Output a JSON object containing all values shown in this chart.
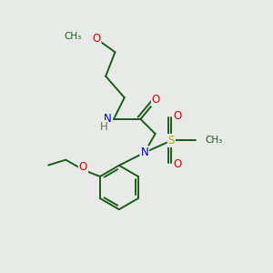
{
  "bg_color": "#e8eae8",
  "bond_color": "#1a5c1a",
  "atom_colors": {
    "O": "#dd0000",
    "N": "#0000cc",
    "S": "#aaaa00",
    "H": "#607060",
    "C": "#1a5c1a"
  },
  "line_width": 1.4,
  "font_size": 8.5,
  "figsize": [
    3.0,
    3.0
  ],
  "dpi": 100
}
